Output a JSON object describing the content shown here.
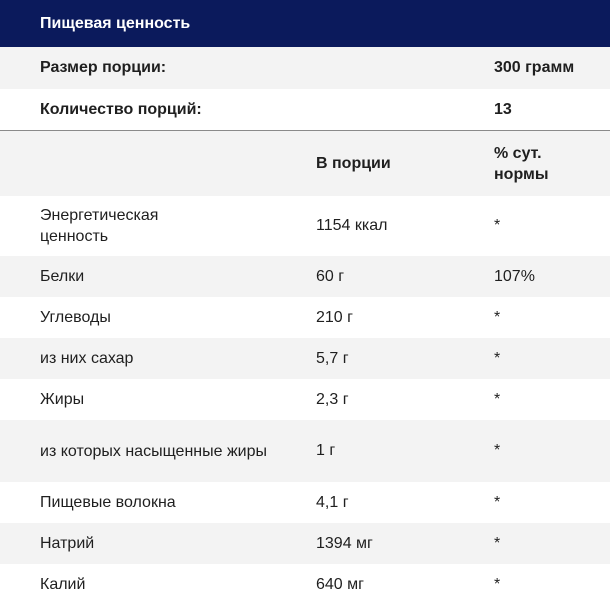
{
  "title": "Пищевая ценность",
  "serving": {
    "label": "Размер порции:",
    "value": "300 грамм"
  },
  "servings_count": {
    "label": "Количество порций:",
    "value": "13"
  },
  "columns": {
    "per_serving": "В порции",
    "daily": "% сут. нормы"
  },
  "rows": [
    {
      "name": "Энергетическая ценность",
      "amount": "1154 ккал",
      "daily": "*"
    },
    {
      "name": "Белки",
      "amount": "60 г",
      "daily": "107%"
    },
    {
      "name": "Углеводы",
      "amount": "210 г",
      "daily": "*"
    },
    {
      "name": "из них сахар",
      "amount": "5,7 г",
      "daily": "*"
    },
    {
      "name": "Жиры",
      "amount": "2,3 г",
      "daily": "*"
    },
    {
      "name": "из которых насыщенные жиры",
      "amount": "1 г",
      "daily": "*"
    },
    {
      "name": "Пищевые волокна",
      "amount": "4,1 г",
      "daily": "*"
    },
    {
      "name": "Натрий",
      "amount": "1394 мг",
      "daily": "*"
    },
    {
      "name": "Калий",
      "amount": "640 мг",
      "daily": "*"
    }
  ]
}
